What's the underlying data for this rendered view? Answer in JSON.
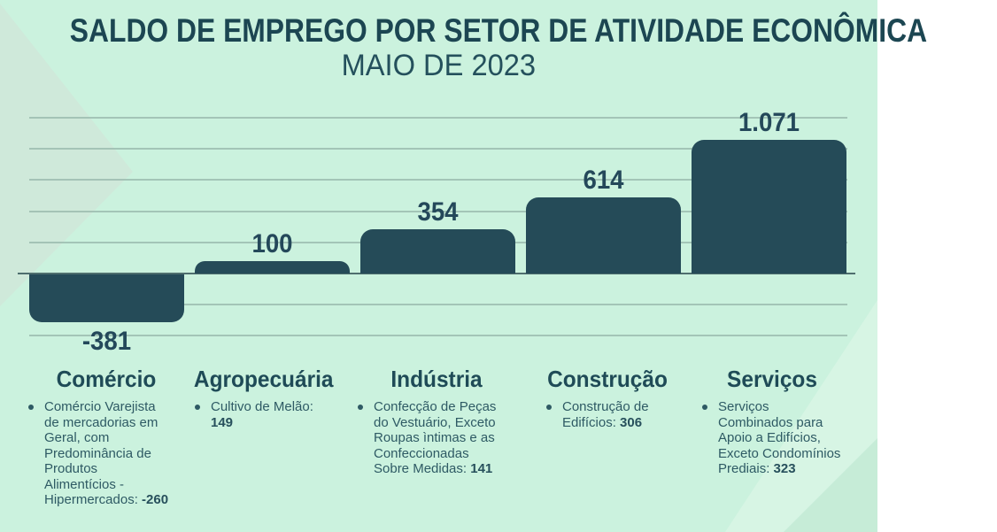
{
  "title": "SALDO DE EMPREGO POR SETOR DE ATIVIDADE ECONÔMICA",
  "subtitle": "MAIO DE 2023",
  "colors": {
    "background": "#cbf2de",
    "bar": "#254b58",
    "heading_text": "#1f4b57",
    "detail_text": "#2e5a64",
    "gridline": "#95b5a9",
    "zero_line": "#4e6e6e"
  },
  "chart_data": {
    "type": "bar",
    "title": "SALDO DE EMPREGO POR SETOR DE ATIVIDADE ECONÔMICA — MAIO DE 2023",
    "categories": [
      "Comércio",
      "Agropecuária",
      "Indústria",
      "Construção",
      "Serviços"
    ],
    "values": [
      -381,
      100,
      354,
      614,
      1071
    ],
    "value_labels": [
      "-381",
      "100",
      "354",
      "614",
      "1.071"
    ],
    "xlabel": "",
    "ylabel": "",
    "ylim": [
      -500,
      1250
    ],
    "gridline_interval": 250,
    "grid": true,
    "legend": false
  },
  "sectors": [
    {
      "name": "Comércio",
      "detail_prefix": "Comércio Varejista\nde mercadorias em\nGeral, com\nPredominância de\nProdutos\nAlimentícios -\nHipermercados: ",
      "detail_value": "-260"
    },
    {
      "name": "Agropecuária",
      "detail_prefix": "Cultivo de Melão:\n",
      "detail_value": "149"
    },
    {
      "name": "Indústria",
      "detail_prefix": "Confecção de Peças\ndo Vestuário, Exceto\nRoupas ìntimas e as\nConfeccionadas\nSobre Medidas: ",
      "detail_value": "141"
    },
    {
      "name": "Construção",
      "detail_prefix": "Construção de\nEdifícios: ",
      "detail_value": "306"
    },
    {
      "name": "Serviços",
      "detail_prefix": "Serviços\nCombinados para\nApoio a Edifícios,\nExceto Condomínios\nPrediais: ",
      "detail_value": "323"
    }
  ]
}
